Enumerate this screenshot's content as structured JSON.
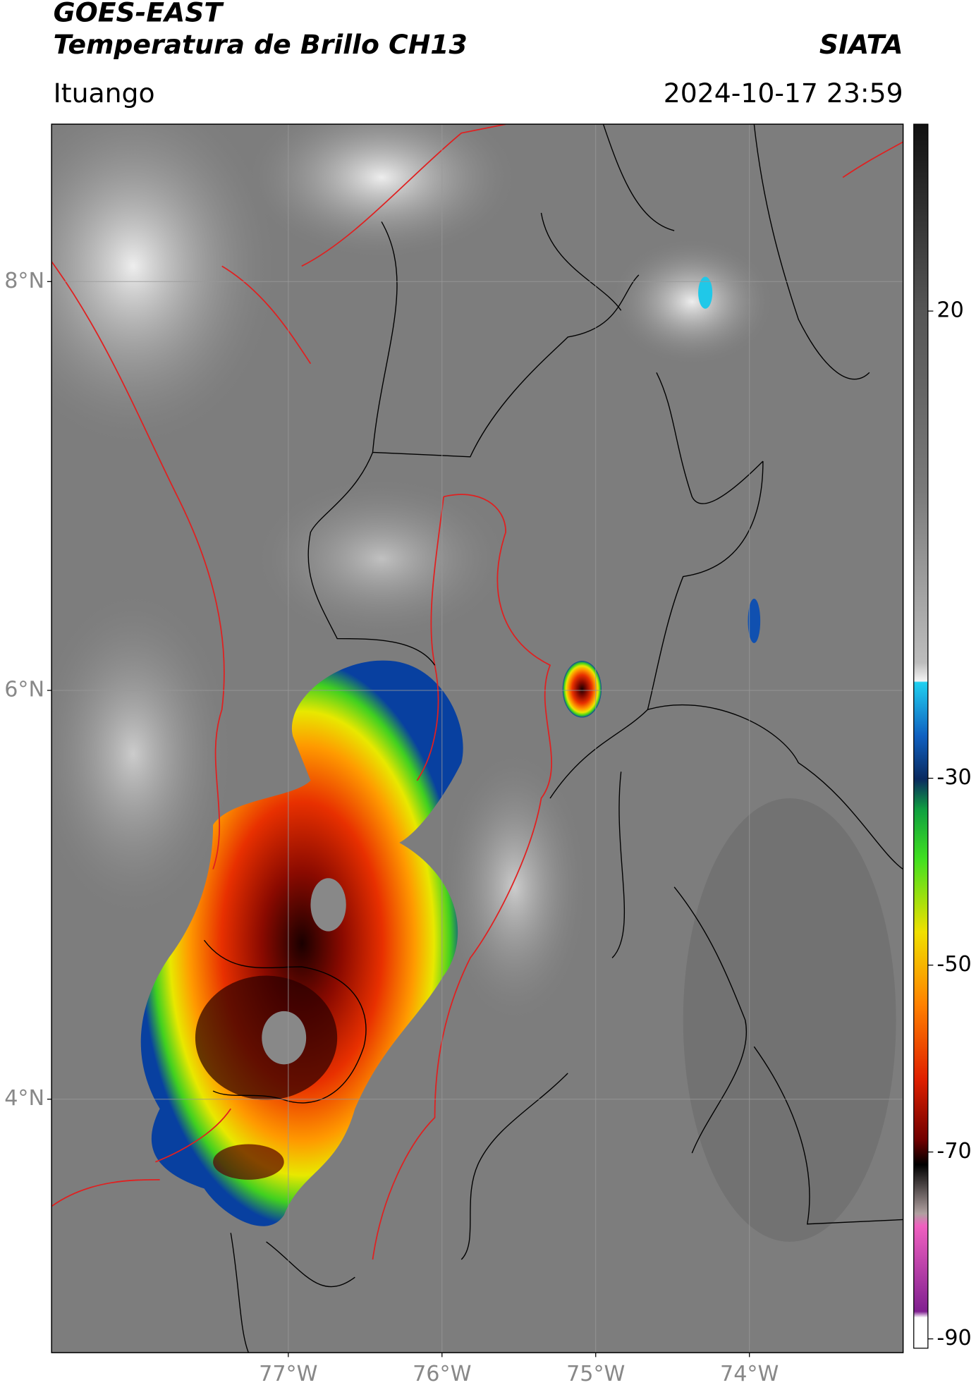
{
  "header": {
    "title_line1": "GOES-EAST",
    "title_line2": "Temperatura de Brillo CH13",
    "brand": "SIATA",
    "location": "Ituango",
    "datetime": "2024-10-17 23:59"
  },
  "map": {
    "xlim": [
      -78.54,
      -73.0
    ],
    "ylim": [
      2.76,
      8.77
    ],
    "yticks": [
      {
        "value": 8,
        "label": "8°N"
      },
      {
        "value": 6,
        "label": "6°N"
      },
      {
        "value": 4,
        "label": "4°N"
      }
    ],
    "xticks": [
      {
        "value": -77,
        "label": "77°W"
      },
      {
        "value": -76,
        "label": "76°W"
      },
      {
        "value": -75,
        "label": "75°W"
      },
      {
        "value": -74,
        "label": "74°W"
      }
    ],
    "grid": true
  },
  "colorbar": {
    "lim": [
      -91,
      40
    ],
    "ticks": [
      20,
      -30,
      -50,
      -70,
      -90
    ]
  }
}
